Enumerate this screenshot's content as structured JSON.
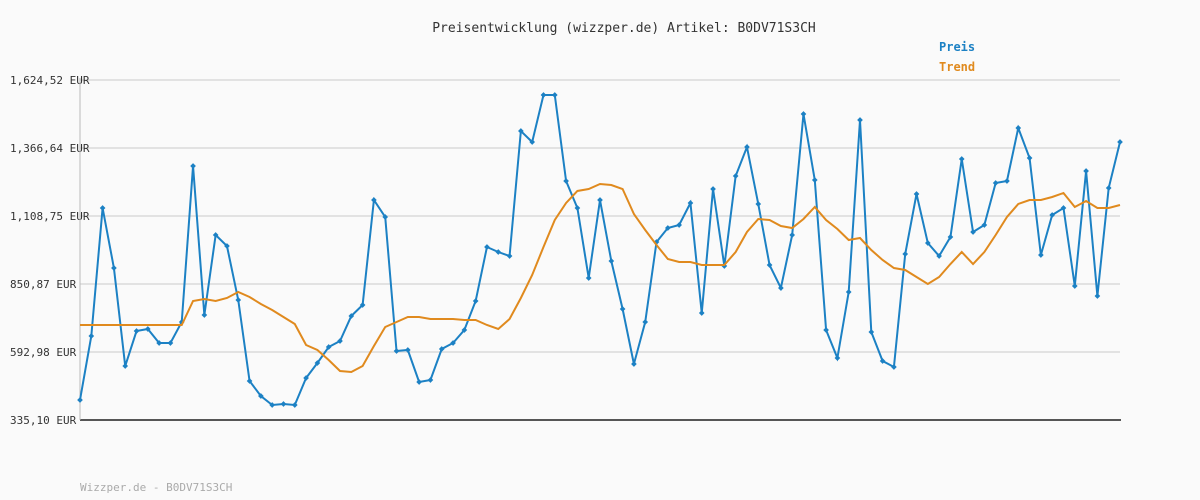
{
  "chart_data": {
    "type": "line",
    "title": "Preisentwicklung (wizzper.de) Artikel: B0DV71S3CH",
    "footer": "Wizzper.de - B0DV71S3CH",
    "ylim": [
      335.1,
      1624.52
    ],
    "yticks": [
      {
        "value": 335.1,
        "label": "335,10 EUR"
      },
      {
        "value": 592.98,
        "label": "592,98 EUR"
      },
      {
        "value": 850.87,
        "label": "850,87 EUR"
      },
      {
        "value": 1108.75,
        "label": "1,108,75 EUR"
      },
      {
        "value": 1366.64,
        "label": "1,366,64 EUR"
      },
      {
        "value": 1624.52,
        "label": "1,624,52 EUR"
      }
    ],
    "grid": true,
    "legend": "top-right",
    "series": [
      {
        "name": "Preis",
        "color": "#1c81c4",
        "markers": true,
        "values": [
          410.9,
          653.7,
          1139.1,
          911.5,
          539.9,
          672.6,
          680.2,
          627.1,
          627.1,
          706.8,
          1298.4,
          733.3,
          1036.7,
          995.0,
          790.2,
          483.0,
          426.1,
          392.0,
          395.8,
          392.0,
          494.4,
          551.3,
          611.9,
          634.7,
          729.5,
          771.2,
          1169.4,
          1105.0,
          596.8,
          600.6,
          479.2,
          486.8,
          604.4,
          627.1,
          676.4,
          786.4,
          991.2,
          972.2,
          957.0,
          1431.1,
          1389.4,
          1567.6,
          1567.6,
          1241.5,
          1139.1,
          873.6,
          1169.4,
          938.1,
          756.1,
          547.5,
          706.8,
          1010.1,
          1063.2,
          1074.6,
          1158.1,
          740.9,
          1211.1,
          919.1,
          1260.4,
          1370.4,
          1154.3,
          922.9,
          835.7,
          1036.7,
          1495.6,
          1245.3,
          676.4,
          570.2,
          820.5,
          1472.8,
          668.8,
          558.8,
          536.1,
          964.6,
          1192.2,
          1006.4,
          957.0,
          1029.1,
          1324.9,
          1048.1,
          1074.6,
          1233.9,
          1241.5,
          1442.5,
          1328.7,
          960.8,
          1112.5,
          1139.1,
          843.3,
          1279.4,
          805.4,
          1214.9,
          1389.4
        ]
      },
      {
        "name": "Trend",
        "color": "#e08a1e",
        "markers": false,
        "values": [
          695.4,
          695.4,
          695.4,
          695.4,
          695.4,
          695.4,
          695.4,
          695.4,
          695.4,
          695.4,
          786.4,
          794.0,
          786.4,
          797.8,
          820.5,
          801.6,
          775.0,
          752.3,
          725.7,
          699.2,
          619.5,
          600.6,
          562.6,
          520.9,
          517.1,
          539.9,
          615.7,
          687.8,
          706.8,
          725.7,
          725.7,
          718.1,
          718.1,
          718.1,
          714.3,
          714.3,
          695.4,
          680.2,
          718.1,
          797.8,
          885.0,
          991.2,
          1093.6,
          1158.1,
          1203.6,
          1211.1,
          1230.1,
          1226.3,
          1211.1,
          1116.3,
          1055.7,
          998.8,
          945.7,
          934.3,
          934.3,
          922.9,
          922.9,
          922.9,
          972.2,
          1048.1,
          1097.4,
          1093.6,
          1070.8,
          1063.2,
          1097.4,
          1142.9,
          1093.6,
          1059.5,
          1017.7,
          1025.3,
          979.8,
          941.9,
          911.5,
          904.0,
          877.4,
          850.9,
          877.4,
          926.7,
          972.2,
          926.7,
          972.2,
          1036.7,
          1105.0,
          1154.3,
          1169.4,
          1169.4,
          1180.8,
          1196.0,
          1142.9,
          1165.6,
          1139.1,
          1139.1,
          1150.5
        ]
      }
    ]
  }
}
